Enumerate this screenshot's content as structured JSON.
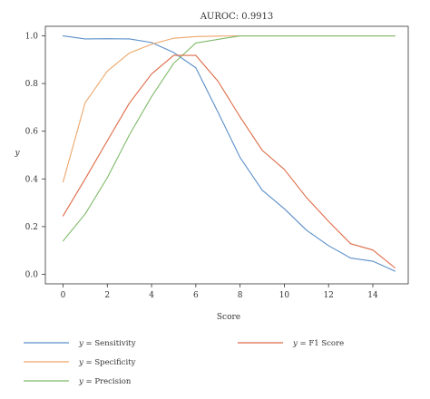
{
  "chart_data": {
    "type": "line",
    "title": "AUROC: 0.9913",
    "xlabel": "Score",
    "ylabel": "y",
    "xlim": [
      -0.8,
      15.6
    ],
    "ylim": [
      -0.04,
      1.04
    ],
    "x_ticks": [
      0,
      2,
      4,
      6,
      8,
      10,
      12,
      14
    ],
    "y_ticks": [
      0.0,
      0.2,
      0.4,
      0.6,
      0.8,
      1.0
    ],
    "x_tick_labels": [
      "0",
      "2",
      "4",
      "6",
      "8",
      "10",
      "12",
      "14"
    ],
    "y_tick_labels": [
      "0.0",
      "0.2",
      "0.4",
      "0.6",
      "0.8",
      "1.0"
    ],
    "grid": false,
    "legend_position": "bottom",
    "x": [
      0,
      1,
      2,
      3,
      4,
      5,
      6,
      7,
      8,
      9,
      10,
      11,
      12,
      13,
      14,
      15
    ],
    "series": [
      {
        "name": "Sensitivity",
        "legend_prefix": "y",
        "legend_eq": " = ",
        "color": "#5b8fc9",
        "values": [
          1.0,
          0.987,
          0.988,
          0.987,
          0.972,
          0.93,
          0.866,
          0.68,
          0.49,
          0.353,
          0.275,
          0.185,
          0.12,
          0.068,
          0.055,
          0.013
        ]
      },
      {
        "name": "Specificity",
        "legend_prefix": "y",
        "legend_eq": " = ",
        "color": "#eda66b",
        "values": [
          0.387,
          0.72,
          0.852,
          0.928,
          0.965,
          0.99,
          0.997,
          0.999,
          1.0,
          1.0,
          1.0,
          1.0,
          1.0,
          1.0,
          1.0,
          1.0
        ]
      },
      {
        "name": "Precision",
        "legend_prefix": "y",
        "legend_eq": " = ",
        "color": "#7fba6a",
        "values": [
          0.14,
          0.253,
          0.405,
          0.585,
          0.745,
          0.885,
          0.97,
          0.985,
          1.0,
          1.0,
          1.0,
          1.0,
          1.0,
          1.0,
          1.0,
          1.0
        ]
      },
      {
        "name": "F1 Score",
        "legend_prefix": "y",
        "legend_eq": " = ",
        "color": "#de6b47",
        "values": [
          0.245,
          0.4,
          0.56,
          0.718,
          0.84,
          0.918,
          0.918,
          0.81,
          0.66,
          0.52,
          0.44,
          0.322,
          0.222,
          0.128,
          0.102,
          0.027
        ]
      }
    ]
  }
}
